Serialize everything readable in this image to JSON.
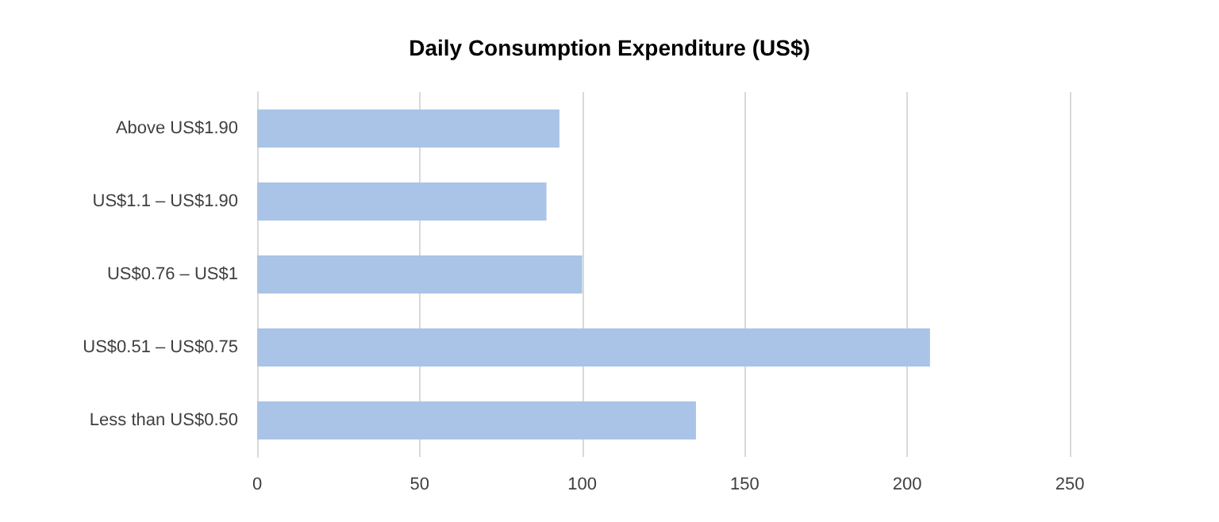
{
  "chart_data": {
    "type": "bar",
    "orientation": "horizontal",
    "title": "Daily Consumption Expenditure (US$)",
    "categories": [
      "Above US$1.90",
      "US$1.1 – US$1.90",
      "US$0.76 – US$1",
      "US$0.51 – US$0.75",
      "Less than US$0.50"
    ],
    "values": [
      93,
      89,
      100,
      207,
      135
    ],
    "color": "#a9c4e6",
    "xlim": [
      0,
      250
    ],
    "xticks": [
      0,
      50,
      100,
      150,
      200,
      250
    ],
    "grid": "x"
  }
}
